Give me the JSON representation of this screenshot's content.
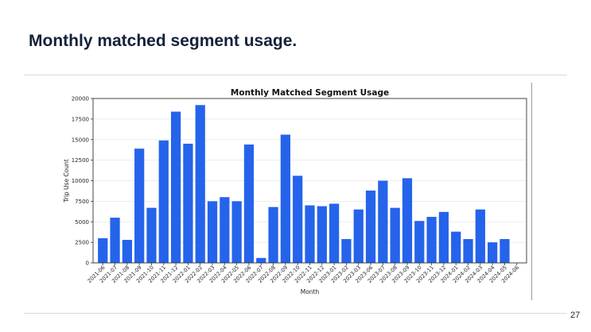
{
  "slide": {
    "title": "Monthly matched segment usage.",
    "page_number": "27"
  },
  "colors": {
    "bar": "#2563eb",
    "title_text": "#14213a",
    "rule": "#cfdedd",
    "grid": "#e6e6e6"
  },
  "chart_data": {
    "type": "bar",
    "title": "Monthly Matched Segment Usage",
    "xlabel": "Month",
    "ylabel": "Trip Use Count",
    "ylim": [
      0,
      20000
    ],
    "yticks": [
      0,
      2500,
      5000,
      7500,
      10000,
      12500,
      15000,
      17500,
      20000
    ],
    "grid": "horizontal",
    "categories": [
      "2021-06",
      "2021-07",
      "2021-08",
      "2021-09",
      "2021-10",
      "2021-11",
      "2021-12",
      "2022-01",
      "2022-02",
      "2022-03",
      "2022-04",
      "2022-05",
      "2022-06",
      "2022-07",
      "2022-08",
      "2022-09",
      "2022-10",
      "2022-11",
      "2022-12",
      "2023-01",
      "2023-02",
      "2023-03",
      "2023-06",
      "2023-07",
      "2023-08",
      "2023-09",
      "2023-10",
      "2023-11",
      "2023-12",
      "2024-01",
      "2024-02",
      "2024-03",
      "2024-04",
      "2024-05",
      "2024-06"
    ],
    "values": [
      3000,
      5500,
      2800,
      13900,
      6700,
      14900,
      18400,
      14500,
      19200,
      7500,
      8000,
      7500,
      14400,
      600,
      6800,
      15600,
      10600,
      7000,
      6900,
      7200,
      2900,
      6500,
      8800,
      10000,
      6700,
      10300,
      5100,
      5600,
      6200,
      3800,
      2900,
      6500,
      2500,
      2900,
      0
    ]
  }
}
